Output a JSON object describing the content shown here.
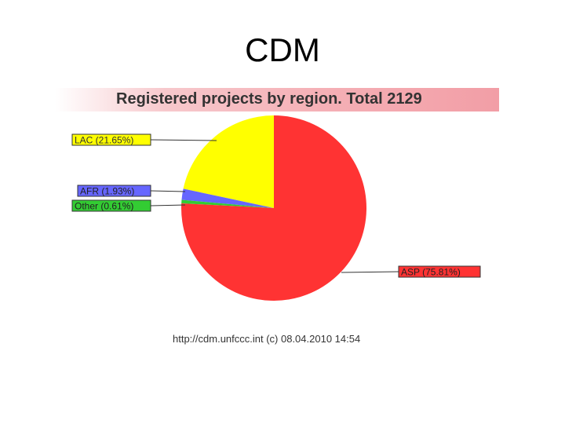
{
  "slide": {
    "title": "CDM"
  },
  "footer": "http://cdm.unfccc.int (c) 08.04.2010 14:54",
  "chart_data": {
    "type": "pie",
    "title": "Registered projects by region. Total 2129",
    "total": 2129,
    "slices": [
      {
        "name": "LAC",
        "label": "LAC (21.65%)",
        "percent": 21.65,
        "color": "#ffff00"
      },
      {
        "name": "AFR",
        "label": "AFR (1.93%)",
        "percent": 1.93,
        "color": "#6666ff"
      },
      {
        "name": "Other",
        "label": "Other (0.61%)",
        "percent": 0.61,
        "color": "#33cc33"
      },
      {
        "name": "ASP",
        "label": "ASP (75.81%)",
        "percent": 75.81,
        "color": "#ff3333"
      }
    ]
  }
}
